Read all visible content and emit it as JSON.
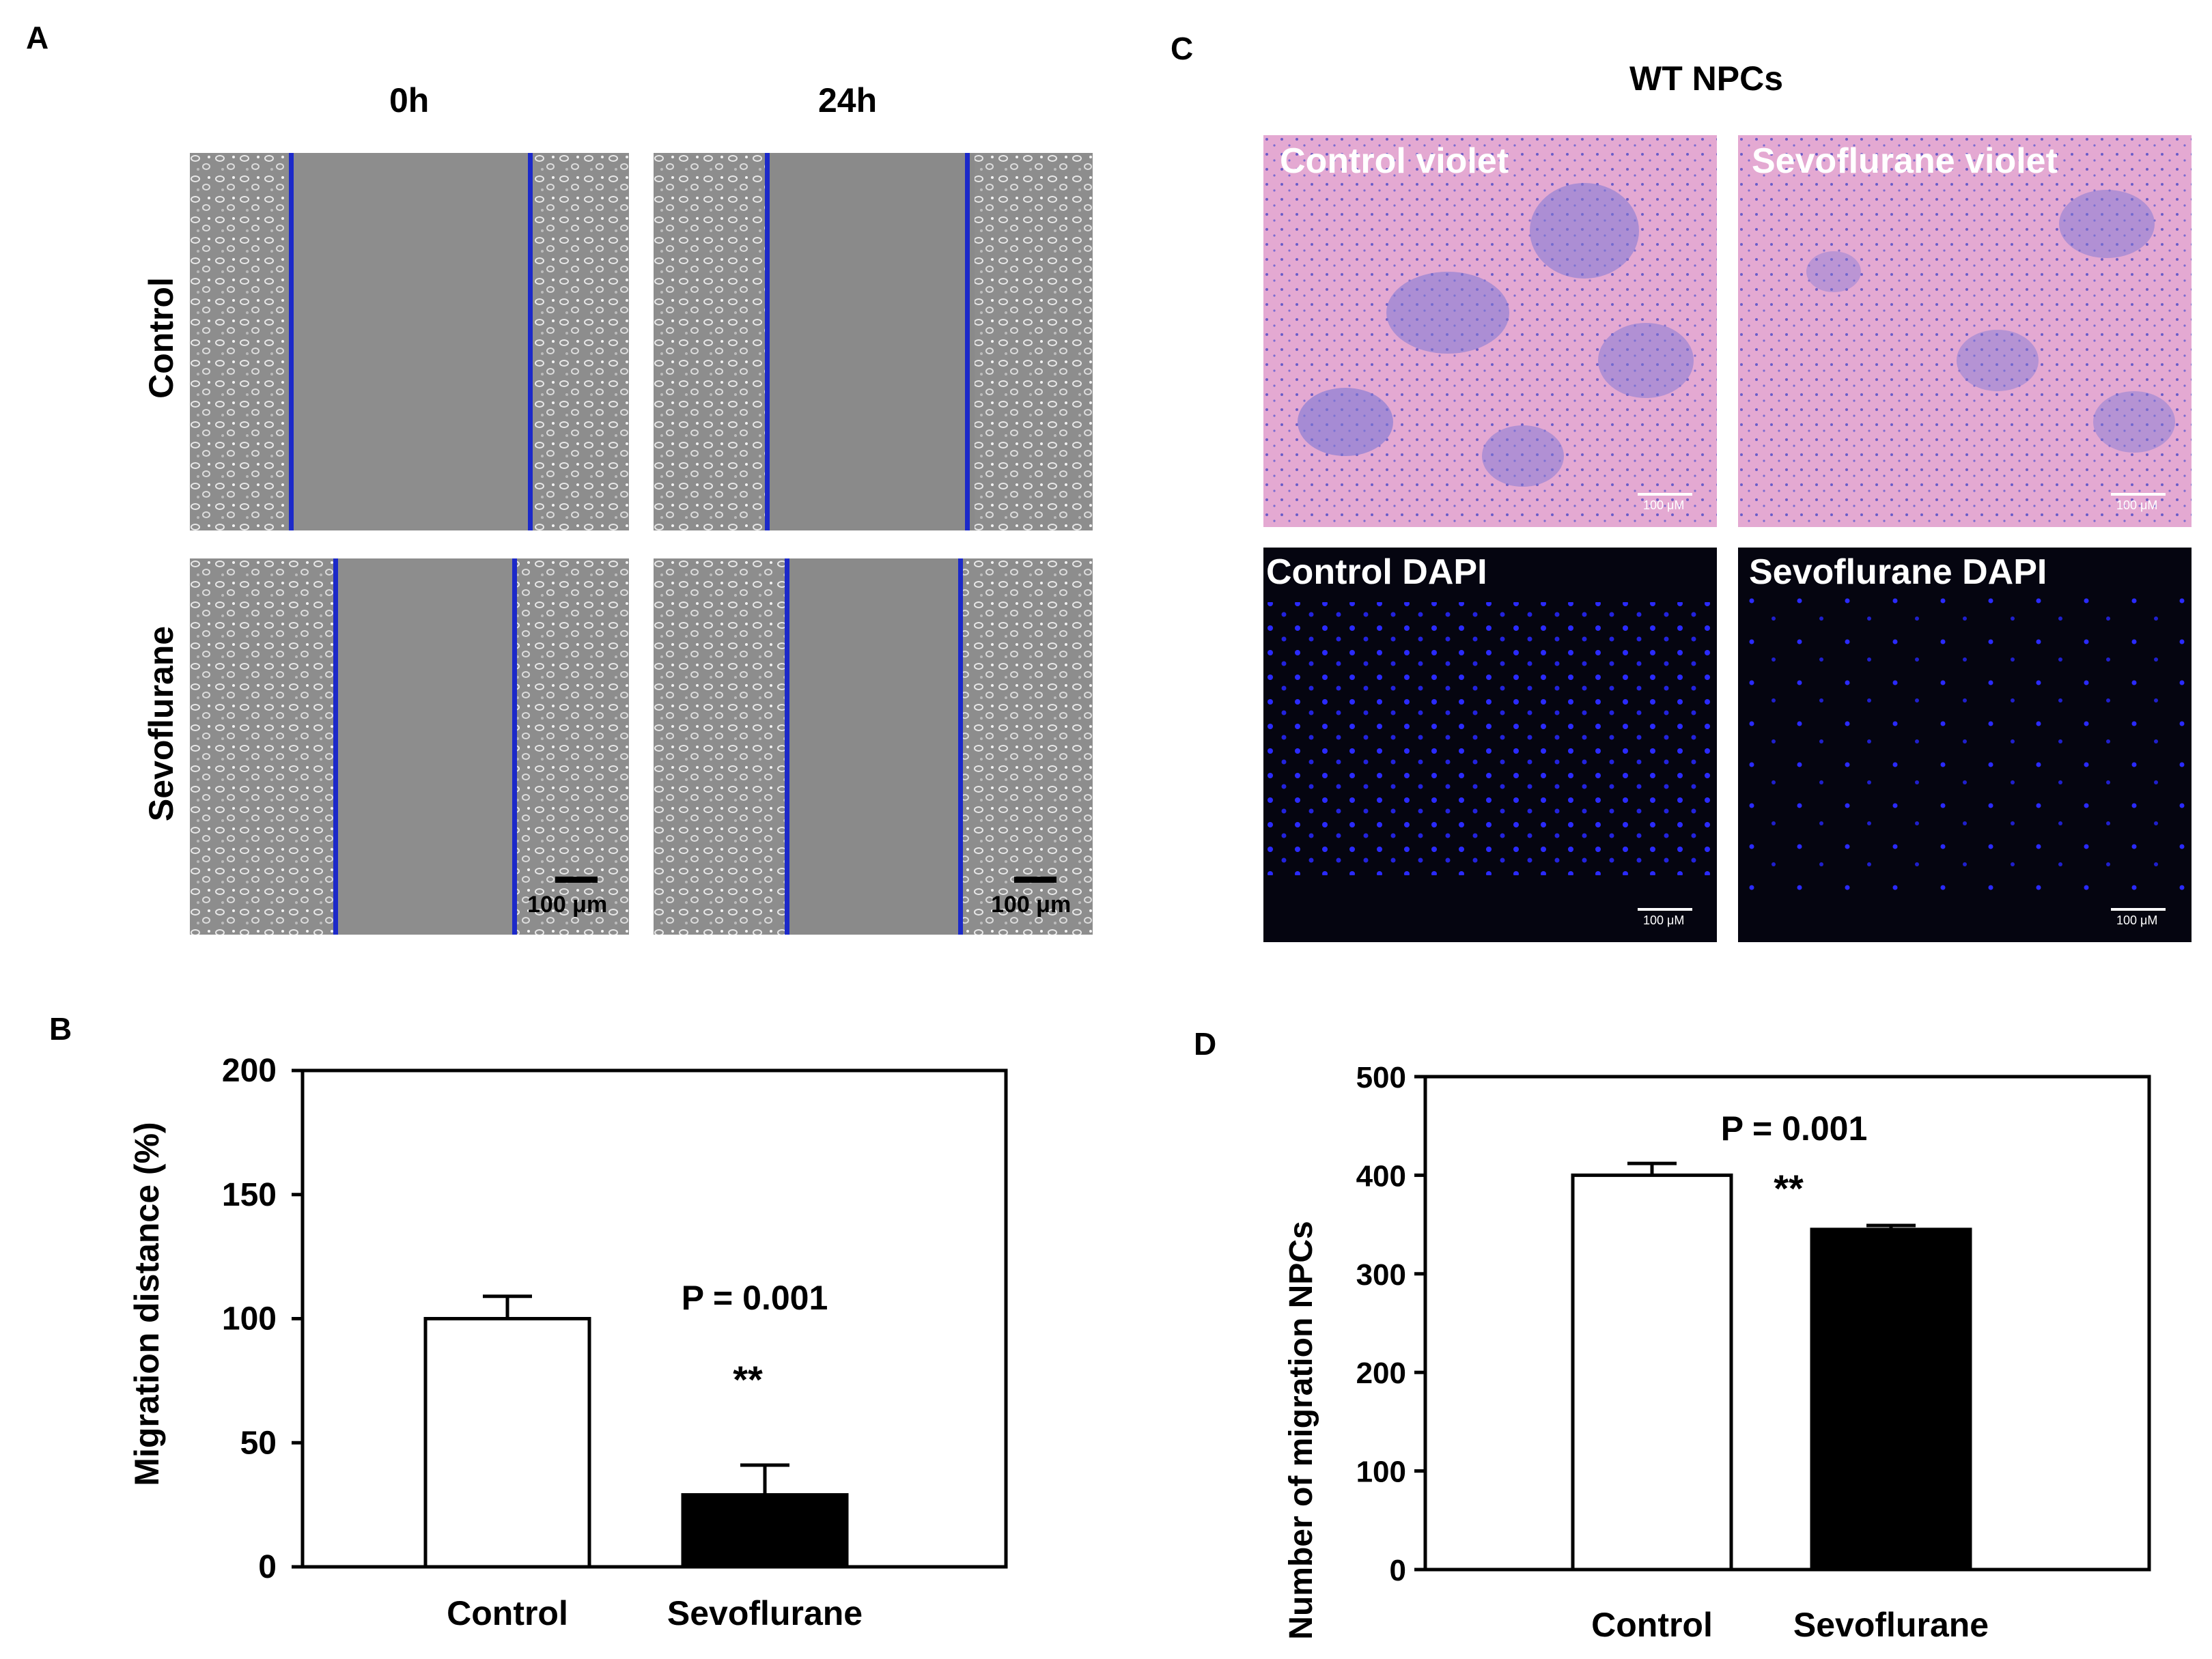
{
  "panels": {
    "a": {
      "letter": "A",
      "columns": [
        "0h",
        "24h"
      ],
      "rows": [
        "Control",
        "Sevoflurane"
      ],
      "scalebar": "100 μm"
    },
    "b": {
      "letter": "B",
      "pvalue": "P = 0.001",
      "significance": "**"
    },
    "c": {
      "letter": "C",
      "title": "WT NPCs",
      "labels": [
        "Control  violet",
        "Sevoflurane  violet",
        "Control   DAPI",
        "Sevoflurane DAPI"
      ],
      "scalebar": "100 μM"
    },
    "d": {
      "letter": "D",
      "pvalue": "P = 0.001",
      "significance": "**"
    }
  },
  "colors": {
    "line_blue": "#1c29c9",
    "violet_bg": "#e4a9d2",
    "violet_cells": "#6a5cc8",
    "dapi_bg": "#050510",
    "dapi_cells": "#2a2aff",
    "bar_control": "#ffffff",
    "bar_sevo": "#000000"
  },
  "chart_data": [
    {
      "id": "B",
      "type": "bar",
      "categories": [
        "Control",
        "Sevoflurane"
      ],
      "values": [
        100,
        29
      ],
      "errors": [
        9,
        12
      ],
      "bar_colors": [
        "#ffffff",
        "#000000"
      ],
      "ylabel": "Migration distance (%)",
      "ylim": [
        0,
        200
      ],
      "yticks": [
        0,
        50,
        100,
        150,
        200
      ],
      "grid": false
    },
    {
      "id": "D",
      "type": "bar",
      "categories": [
        "Control",
        "Sevoflurane"
      ],
      "values": [
        400,
        345
      ],
      "errors": [
        12,
        4
      ],
      "bar_colors": [
        "#ffffff",
        "#000000"
      ],
      "ylabel": "Number of migration NPCs",
      "ylim": [
        0,
        500
      ],
      "yticks": [
        0,
        100,
        200,
        300,
        400,
        500
      ],
      "grid": false
    }
  ]
}
